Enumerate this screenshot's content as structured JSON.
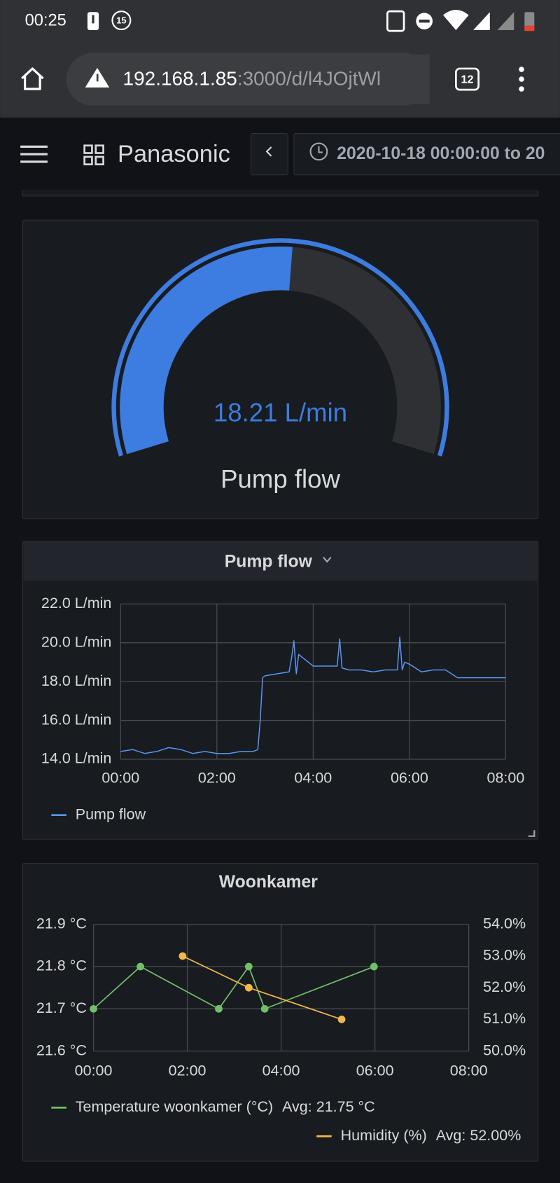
{
  "status_bar": {
    "time": "00:25",
    "badge": "15"
  },
  "browser": {
    "url_host": "192.168.1.85",
    "url_rest": ":3000/d/l4JOjtWl",
    "tab_count": "12"
  },
  "header": {
    "title": "Panasonic",
    "time_range": "2020-10-18 00:00:00 to 20"
  },
  "chart_data": [
    {
      "type": "gauge",
      "title": "Pump flow",
      "value": 18.21,
      "value_label": "18.21 L/min",
      "range": [
        0,
        35
      ],
      "color": "#3d7ce0"
    },
    {
      "type": "line",
      "title": "Pump flow",
      "x": [
        0,
        0.25,
        0.5,
        0.75,
        1,
        1.25,
        1.5,
        1.75,
        2,
        2.25,
        2.5,
        2.75,
        2.85,
        2.9,
        2.95,
        3.0,
        3.25,
        3.5,
        3.55,
        3.6,
        3.65,
        3.7,
        3.75,
        4.0,
        4.25,
        4.5,
        4.55,
        4.6,
        4.75,
        5.0,
        5.25,
        5.5,
        5.75,
        5.8,
        5.85,
        5.9,
        6.0,
        6.25,
        6.5,
        6.75,
        7.0,
        7.25,
        7.5,
        7.75,
        8.0
      ],
      "series": [
        {
          "name": "Pump flow",
          "color": "#5794f2",
          "values": [
            14.4,
            14.5,
            14.3,
            14.4,
            14.6,
            14.5,
            14.3,
            14.4,
            14.3,
            14.3,
            14.4,
            14.4,
            14.5,
            16.0,
            18.2,
            18.3,
            18.4,
            18.5,
            19.2,
            20.1,
            18.4,
            19.4,
            19.3,
            18.8,
            18.8,
            18.8,
            20.2,
            18.7,
            18.6,
            18.6,
            18.5,
            18.6,
            18.6,
            20.3,
            18.6,
            19.0,
            18.9,
            18.5,
            18.6,
            18.6,
            18.2,
            18.2,
            18.2,
            18.2,
            18.2
          ]
        }
      ],
      "xlim": [
        0,
        8
      ],
      "xticks": [
        {
          "value": 0,
          "label": "00:00"
        },
        {
          "value": 2,
          "label": "02:00"
        },
        {
          "value": 4,
          "label": "04:00"
        },
        {
          "value": 6,
          "label": "06:00"
        },
        {
          "value": 8,
          "label": "08:00"
        }
      ],
      "ylim": [
        14,
        22
      ],
      "yticks": [
        {
          "value": 14,
          "label": "14.0 L/min"
        },
        {
          "value": 16,
          "label": "16.0 L/min"
        },
        {
          "value": 18,
          "label": "18.0 L/min"
        },
        {
          "value": 20,
          "label": "20.0 L/min"
        },
        {
          "value": 22,
          "label": "22.0 L/min"
        }
      ],
      "grid": true
    },
    {
      "type": "line",
      "title": "Woonkamer",
      "series": [
        {
          "name": "Temperature woonkamer (°C)",
          "legend_avg": "Avg: 21.75 °C",
          "color": "#73bf69",
          "x": [
            0,
            1.0,
            2.67,
            3.31,
            3.65,
            5.98
          ],
          "values": [
            21.7,
            21.8,
            21.7,
            21.8,
            21.7,
            21.8
          ]
        },
        {
          "name": "Humidity (%)",
          "legend_avg": "Avg: 52.00%",
          "color": "#f2b84b",
          "axis": "y2",
          "x": [
            1.9,
            3.31,
            5.29
          ],
          "values": [
            53.0,
            52.0,
            51.0
          ]
        }
      ],
      "xlim": [
        0,
        8
      ],
      "xticks": [
        {
          "value": 0,
          "label": "00:00"
        },
        {
          "value": 2,
          "label": "02:00"
        },
        {
          "value": 4,
          "label": "04:00"
        },
        {
          "value": 6,
          "label": "06:00"
        },
        {
          "value": 8,
          "label": "08:00"
        }
      ],
      "ylim": [
        21.6,
        21.9
      ],
      "yticks": [
        {
          "value": 21.6,
          "label": "21.6 °C"
        },
        {
          "value": 21.7,
          "label": "21.7 °C"
        },
        {
          "value": 21.8,
          "label": "21.8 °C"
        },
        {
          "value": 21.9,
          "label": "21.9 °C"
        }
      ],
      "y2lim": [
        50,
        54
      ],
      "y2ticks": [
        {
          "value": 50,
          "label": "50.0%"
        },
        {
          "value": 51,
          "label": "51.0%"
        },
        {
          "value": 52,
          "label": "52.0%"
        },
        {
          "value": 53,
          "label": "53.0%"
        },
        {
          "value": 54,
          "label": "54.0%"
        }
      ],
      "grid": true
    }
  ]
}
